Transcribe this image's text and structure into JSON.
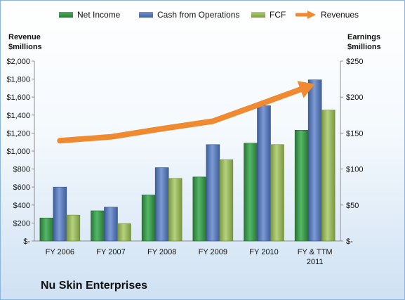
{
  "legend": {
    "net_income": "Net Income",
    "cash_from_operations": "Cash from Operations",
    "fcf": "FCF",
    "revenues": "Revenues"
  },
  "axes": {
    "left_title_line1": "Revenue",
    "left_title_line2": "$millions",
    "right_title_line1": "Earnings",
    "right_title_line2": "$millions"
  },
  "company_name": "Nu Skin Enterprises",
  "colors": {
    "net_income": "#3a9a4a",
    "cash_from_operations": "#5b7fbf",
    "fcf": "#9bbb59",
    "revenues": "#f08a30"
  },
  "chart_data": {
    "type": "bar",
    "categories": [
      "FY 2006",
      "FY 2007",
      "FY 2008",
      "FY 2009",
      "FY 2010",
      "FY & TTM 2011"
    ],
    "series": [
      {
        "name": "Net Income",
        "axis": "right",
        "values": [
          32,
          42,
          64,
          89,
          136,
          154
        ]
      },
      {
        "name": "Cash from Operations",
        "axis": "right",
        "values": [
          75,
          47,
          102,
          134,
          188,
          224
        ]
      },
      {
        "name": "FCF",
        "axis": "right",
        "values": [
          36,
          24,
          87,
          113,
          134,
          182
        ]
      },
      {
        "name": "Revenues",
        "axis": "left",
        "type": "line",
        "values": [
          1115,
          1158,
          1248,
          1332,
          1537,
          1744
        ]
      }
    ],
    "left_axis": {
      "title": "Revenue $millions",
      "ylim": [
        0,
        2000
      ],
      "tick_labels": [
        "$-",
        "$200",
        "$400",
        "$600",
        "$800",
        "$1,000",
        "$1,200",
        "$1,400",
        "$1,600",
        "$1,800",
        "$2,000"
      ]
    },
    "right_axis": {
      "title": "Earnings $millions",
      "ylim": [
        0,
        250
      ],
      "tick_labels": [
        "$-",
        "$50",
        "$100",
        "$150",
        "$200",
        "$250"
      ]
    },
    "title": "",
    "grid": false,
    "legend_position": "top"
  }
}
